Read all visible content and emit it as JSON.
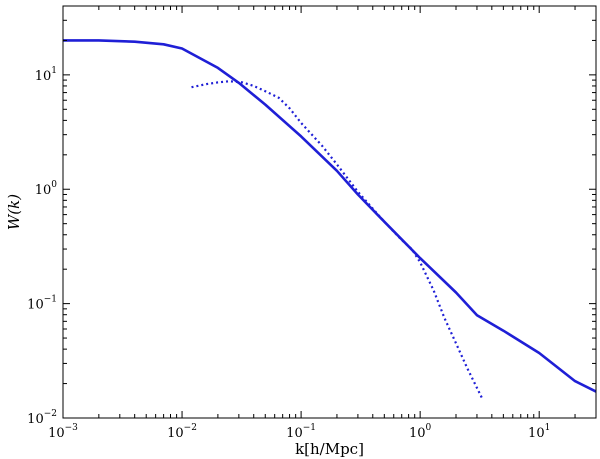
{
  "chart_data": {
    "type": "line",
    "xscale": "log",
    "yscale": "log",
    "xlim": [
      0.001,
      30
    ],
    "ylim": [
      0.01,
      40
    ],
    "xlabel": "k[h/Mpc]",
    "ylabel": "W(k)",
    "x_ticks": [
      {
        "value": 0.001,
        "base": "10",
        "exp": "−3"
      },
      {
        "value": 0.01,
        "base": "10",
        "exp": "−2"
      },
      {
        "value": 0.1,
        "base": "10",
        "exp": "−1"
      },
      {
        "value": 1,
        "base": "10",
        "exp": "0"
      },
      {
        "value": 10,
        "base": "10",
        "exp": "1"
      }
    ],
    "y_ticks": [
      {
        "value": 0.01,
        "base": "10",
        "exp": "−2"
      },
      {
        "value": 0.1,
        "base": "10",
        "exp": "−1"
      },
      {
        "value": 1,
        "base": "10",
        "exp": "0"
      },
      {
        "value": 10,
        "base": "10",
        "exp": "1"
      }
    ],
    "grid": false,
    "color": "#1f1fd6",
    "series": [
      {
        "style": "solid",
        "x": [
          0.001,
          0.002,
          0.004,
          0.007,
          0.01,
          0.02,
          0.03,
          0.05,
          0.1,
          0.2,
          0.3,
          0.5,
          1,
          2,
          3,
          5,
          10,
          20,
          30
        ],
        "y": [
          20,
          20,
          19.5,
          18.5,
          17,
          11.5,
          8.5,
          5.5,
          2.9,
          1.45,
          0.9,
          0.52,
          0.25,
          0.125,
          0.079,
          0.058,
          0.037,
          0.021,
          0.017
        ]
      },
      {
        "style": "dotted",
        "x": [
          0.012,
          0.016,
          0.02,
          0.025,
          0.032,
          0.04,
          0.05,
          0.065,
          0.08,
          0.1,
          0.15,
          0.2,
          0.3,
          0.5,
          0.7,
          0.85,
          1.0,
          1.3,
          1.6,
          2.0,
          2.5,
          3.3
        ],
        "y": [
          7.8,
          8.3,
          8.6,
          8.8,
          8.6,
          8.0,
          7.2,
          6.3,
          5.1,
          3.8,
          2.4,
          1.65,
          0.95,
          0.52,
          0.36,
          0.3,
          0.23,
          0.13,
          0.075,
          0.045,
          0.027,
          0.015
        ]
      }
    ]
  }
}
